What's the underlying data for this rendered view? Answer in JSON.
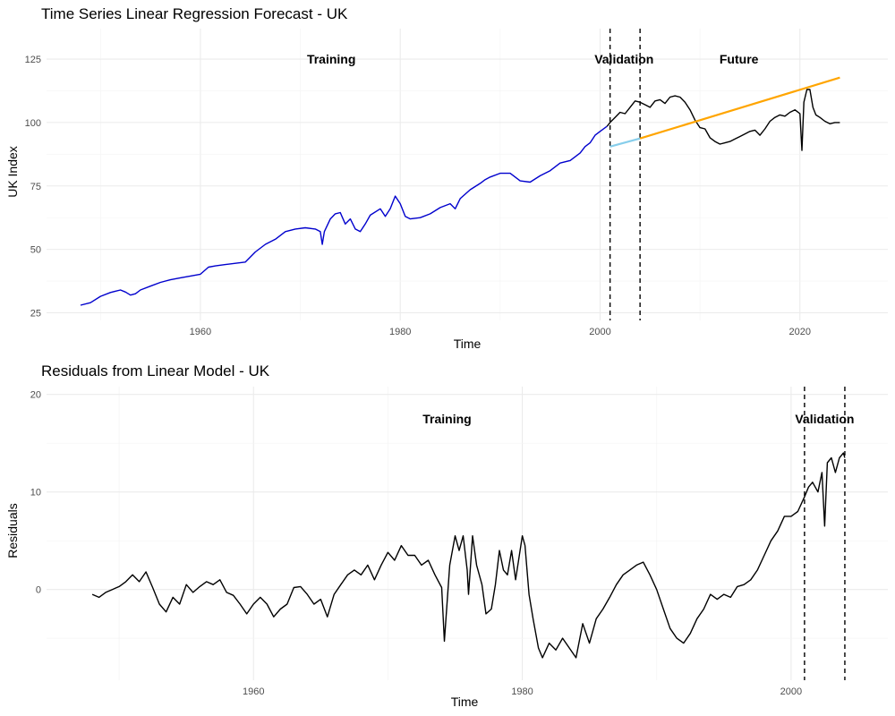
{
  "chart_data": [
    {
      "type": "line",
      "title": "Time Series Linear Regression Forecast - UK",
      "xlabel": "Time",
      "ylabel": "UK Index",
      "xlim": [
        1944.6,
        2028.8
      ],
      "ylim": [
        22,
        137
      ],
      "x_ticks": [
        1960,
        1980,
        2000,
        2020
      ],
      "y_ticks": [
        25,
        50,
        75,
        100,
        125
      ],
      "grid": true,
      "vlines": [
        2001,
        2004
      ],
      "annotations": [
        {
          "text": "Training",
          "x": 1973.1,
          "y": 125
        },
        {
          "text": "Validation",
          "x": 2002.4,
          "y": 125
        },
        {
          "text": "Future",
          "x": 2013.9,
          "y": 125
        }
      ],
      "series": [
        {
          "color": "#0000cd",
          "points": [
            [
              1948.0,
              28.0
            ],
            [
              1949.0,
              29.0
            ],
            [
              1950.0,
              31.5
            ],
            [
              1951.0,
              33.0
            ],
            [
              1952.0,
              34.0
            ],
            [
              1952.5,
              33.2
            ],
            [
              1953.0,
              32.0
            ],
            [
              1953.5,
              32.5
            ],
            [
              1954.0,
              34.0
            ],
            [
              1955.0,
              35.5
            ],
            [
              1956.0,
              37.0
            ],
            [
              1957.0,
              38.0
            ],
            [
              1958.0,
              38.8
            ],
            [
              1959.0,
              39.5
            ],
            [
              1960.0,
              40.2
            ],
            [
              1960.8,
              43.0
            ],
            [
              1961.5,
              43.5
            ],
            [
              1962.5,
              44.0
            ],
            [
              1963.5,
              44.5
            ],
            [
              1964.5,
              45.0
            ],
            [
              1965.5,
              49.0
            ],
            [
              1966.5,
              52.0
            ],
            [
              1967.5,
              54.0
            ],
            [
              1968.5,
              57.0
            ],
            [
              1969.5,
              58.0
            ],
            [
              1970.5,
              58.5
            ],
            [
              1971.5,
              58.0
            ],
            [
              1972.0,
              57.0
            ],
            [
              1972.2,
              52.0
            ],
            [
              1972.4,
              57.0
            ],
            [
              1973.0,
              62.0
            ],
            [
              1973.5,
              64.0
            ],
            [
              1974.0,
              64.5
            ],
            [
              1974.5,
              60.0
            ],
            [
              1975.0,
              62.0
            ],
            [
              1975.5,
              58.0
            ],
            [
              1976.0,
              57.0
            ],
            [
              1976.5,
              60.0
            ],
            [
              1977.0,
              63.5
            ],
            [
              1978.0,
              66.0
            ],
            [
              1978.5,
              63.0
            ],
            [
              1979.0,
              66.0
            ],
            [
              1979.5,
              71.0
            ],
            [
              1980.0,
              68.0
            ],
            [
              1980.5,
              63.0
            ],
            [
              1981.0,
              62.0
            ],
            [
              1982.0,
              62.5
            ],
            [
              1983.0,
              64.0
            ],
            [
              1984.0,
              66.5
            ],
            [
              1985.0,
              68.0
            ],
            [
              1985.5,
              66.0
            ],
            [
              1986.0,
              70.0
            ],
            [
              1987.0,
              73.5
            ],
            [
              1988.0,
              76.0
            ],
            [
              1988.5,
              77.5
            ],
            [
              1989.0,
              78.5
            ],
            [
              1990.0,
              80.0
            ],
            [
              1991.0,
              80.0
            ],
            [
              1992.0,
              77.0
            ],
            [
              1993.0,
              76.5
            ],
            [
              1994.0,
              79.0
            ],
            [
              1995.0,
              81.0
            ],
            [
              1996.0,
              84.0
            ],
            [
              1997.0,
              85.0
            ],
            [
              1998.0,
              88.0
            ],
            [
              1998.5,
              90.5
            ],
            [
              1999.0,
              92.0
            ],
            [
              1999.5,
              95.0
            ],
            [
              2000.0,
              96.5
            ],
            [
              2000.7,
              98.5
            ]
          ]
        },
        {
          "color": "#000000",
          "points": [
            [
              2000.7,
              98.5
            ],
            [
              2001.0,
              100.0
            ],
            [
              2001.5,
              102.0
            ],
            [
              2002.0,
              104.0
            ],
            [
              2002.5,
              103.5
            ],
            [
              2003.0,
              106.0
            ],
            [
              2003.5,
              108.5
            ],
            [
              2004.0,
              108.0
            ],
            [
              2004.5,
              107.0
            ],
            [
              2005.0,
              106.0
            ],
            [
              2005.5,
              108.5
            ],
            [
              2006.0,
              109.0
            ],
            [
              2006.5,
              107.5
            ],
            [
              2007.0,
              110.0
            ],
            [
              2007.5,
              110.5
            ],
            [
              2008.0,
              110.0
            ],
            [
              2008.5,
              108.0
            ],
            [
              2009.0,
              105.0
            ],
            [
              2009.5,
              101.0
            ],
            [
              2010.0,
              98.0
            ],
            [
              2010.5,
              97.5
            ],
            [
              2011.0,
              94.0
            ],
            [
              2011.5,
              92.5
            ],
            [
              2012.0,
              91.5
            ],
            [
              2012.5,
              92.0
            ],
            [
              2013.0,
              92.5
            ],
            [
              2013.5,
              93.5
            ],
            [
              2014.0,
              94.5
            ],
            [
              2014.5,
              95.5
            ],
            [
              2015.0,
              96.5
            ],
            [
              2015.5,
              97.0
            ],
            [
              2016.0,
              95.0
            ],
            [
              2016.5,
              97.5
            ],
            [
              2017.0,
              100.5
            ],
            [
              2017.5,
              102.0
            ],
            [
              2018.0,
              103.0
            ],
            [
              2018.5,
              102.5
            ],
            [
              2019.0,
              104.0
            ],
            [
              2019.5,
              105.0
            ],
            [
              2020.0,
              103.5
            ],
            [
              2020.2,
              89.0
            ],
            [
              2020.4,
              108.0
            ],
            [
              2020.7,
              113.0
            ],
            [
              2021.0,
              113.0
            ],
            [
              2021.3,
              106.0
            ],
            [
              2021.6,
              103.0
            ],
            [
              2022.0,
              102.0
            ],
            [
              2022.5,
              100.5
            ],
            [
              2023.0,
              99.5
            ],
            [
              2023.5,
              100.0
            ],
            [
              2024.0,
              100.0
            ]
          ]
        },
        {
          "color": "#87ceeb",
          "points": [
            [
              2001.0,
              90.5
            ],
            [
              2004.0,
              93.7
            ]
          ]
        },
        {
          "color": "#ffa500",
          "points": [
            [
              2004.0,
              93.7
            ],
            [
              2024.0,
              117.7
            ]
          ]
        }
      ]
    },
    {
      "type": "line",
      "title": "Residuals from Linear Model - UK",
      "xlabel": "Time",
      "ylabel": "Residuals",
      "xlim": [
        1944.6,
        2007.2
      ],
      "ylim": [
        -9.3,
        20.8
      ],
      "x_ticks": [
        1960,
        1980,
        2000
      ],
      "y_ticks": [
        0,
        10,
        20
      ],
      "grid": true,
      "vlines": [
        2001,
        2004
      ],
      "annotations": [
        {
          "text": "Training",
          "x": 1974.4,
          "y": 17.5
        },
        {
          "text": "Validation",
          "x": 2002.5,
          "y": 17.5
        }
      ],
      "series": [
        {
          "color": "#000000",
          "points": [
            [
              1948.0,
              -0.5
            ],
            [
              1948.5,
              -0.8
            ],
            [
              1949.0,
              -0.3
            ],
            [
              1950.0,
              0.3
            ],
            [
              1950.5,
              0.8
            ],
            [
              1951.0,
              1.5
            ],
            [
              1951.5,
              0.8
            ],
            [
              1952.0,
              1.8
            ],
            [
              1952.5,
              0.2
            ],
            [
              1953.0,
              -1.5
            ],
            [
              1953.5,
              -2.3
            ],
            [
              1954.0,
              -0.8
            ],
            [
              1954.5,
              -1.5
            ],
            [
              1955.0,
              0.5
            ],
            [
              1955.5,
              -0.3
            ],
            [
              1956.0,
              0.3
            ],
            [
              1956.5,
              0.8
            ],
            [
              1957.0,
              0.5
            ],
            [
              1957.5,
              1.0
            ],
            [
              1958.0,
              -0.3
            ],
            [
              1958.5,
              -0.6
            ],
            [
              1959.0,
              -1.5
            ],
            [
              1959.5,
              -2.5
            ],
            [
              1960.0,
              -1.5
            ],
            [
              1960.5,
              -0.8
            ],
            [
              1961.0,
              -1.5
            ],
            [
              1961.5,
              -2.8
            ],
            [
              1962.0,
              -2.0
            ],
            [
              1962.5,
              -1.5
            ],
            [
              1963.0,
              0.2
            ],
            [
              1963.5,
              0.3
            ],
            [
              1964.0,
              -0.5
            ],
            [
              1964.5,
              -1.5
            ],
            [
              1965.0,
              -1.0
            ],
            [
              1965.5,
              -2.8
            ],
            [
              1966.0,
              -0.5
            ],
            [
              1966.5,
              0.5
            ],
            [
              1967.0,
              1.5
            ],
            [
              1967.5,
              2.0
            ],
            [
              1968.0,
              1.5
            ],
            [
              1968.5,
              2.5
            ],
            [
              1969.0,
              1.0
            ],
            [
              1969.5,
              2.5
            ],
            [
              1970.0,
              3.8
            ],
            [
              1970.5,
              3.0
            ],
            [
              1971.0,
              4.5
            ],
            [
              1971.5,
              3.5
            ],
            [
              1972.0,
              3.5
            ],
            [
              1972.5,
              2.5
            ],
            [
              1973.0,
              3.0
            ],
            [
              1973.5,
              1.5
            ],
            [
              1974.0,
              0.2
            ],
            [
              1974.2,
              -5.3
            ],
            [
              1974.6,
              2.5
            ],
            [
              1975.0,
              5.5
            ],
            [
              1975.3,
              4.0
            ],
            [
              1975.6,
              5.5
            ],
            [
              1975.9,
              2.0
            ],
            [
              1976.0,
              -0.5
            ],
            [
              1976.3,
              5.5
            ],
            [
              1976.6,
              2.5
            ],
            [
              1977.0,
              0.5
            ],
            [
              1977.3,
              -2.5
            ],
            [
              1977.7,
              -2.0
            ],
            [
              1978.0,
              0.5
            ],
            [
              1978.3,
              4.0
            ],
            [
              1978.6,
              2.0
            ],
            [
              1978.9,
              1.5
            ],
            [
              1979.2,
              4.0
            ],
            [
              1979.5,
              1.0
            ],
            [
              1980.0,
              5.5
            ],
            [
              1980.2,
              4.5
            ],
            [
              1980.5,
              -0.5
            ],
            [
              1980.8,
              -3.0
            ],
            [
              1981.2,
              -6.0
            ],
            [
              1981.5,
              -7.0
            ],
            [
              1982.0,
              -5.5
            ],
            [
              1982.5,
              -6.2
            ],
            [
              1983.0,
              -5.0
            ],
            [
              1983.5,
              -6.0
            ],
            [
              1984.0,
              -7.0
            ],
            [
              1984.5,
              -3.5
            ],
            [
              1985.0,
              -5.5
            ],
            [
              1985.5,
              -3.0
            ],
            [
              1986.0,
              -2.0
            ],
            [
              1986.5,
              -0.8
            ],
            [
              1987.0,
              0.5
            ],
            [
              1987.5,
              1.5
            ],
            [
              1988.0,
              2.0
            ],
            [
              1988.5,
              2.5
            ],
            [
              1989.0,
              2.8
            ],
            [
              1989.5,
              1.5
            ],
            [
              1990.0,
              0.0
            ],
            [
              1990.5,
              -2.0
            ],
            [
              1991.0,
              -4.0
            ],
            [
              1991.5,
              -5.0
            ],
            [
              1992.0,
              -5.5
            ],
            [
              1992.5,
              -4.5
            ],
            [
              1993.0,
              -3.0
            ],
            [
              1993.5,
              -2.0
            ],
            [
              1994.0,
              -0.5
            ],
            [
              1994.5,
              -1.0
            ],
            [
              1995.0,
              -0.5
            ],
            [
              1995.5,
              -0.8
            ],
            [
              1996.0,
              0.3
            ],
            [
              1996.5,
              0.5
            ],
            [
              1997.0,
              1.0
            ],
            [
              1997.5,
              2.0
            ],
            [
              1998.0,
              3.5
            ],
            [
              1998.5,
              5.0
            ],
            [
              1999.0,
              6.0
            ],
            [
              1999.5,
              7.5
            ],
            [
              2000.0,
              7.5
            ],
            [
              2000.5,
              8.0
            ],
            [
              2001.0,
              9.5
            ],
            [
              2001.3,
              10.5
            ],
            [
              2001.6,
              11.0
            ],
            [
              2002.0,
              10.0
            ],
            [
              2002.3,
              12.0
            ],
            [
              2002.5,
              6.5
            ],
            [
              2002.7,
              13.0
            ],
            [
              2003.0,
              13.5
            ],
            [
              2003.3,
              12.0
            ],
            [
              2003.6,
              13.5
            ],
            [
              2003.9,
              14.0
            ],
            [
              2004.0,
              13.5
            ]
          ]
        }
      ]
    }
  ]
}
